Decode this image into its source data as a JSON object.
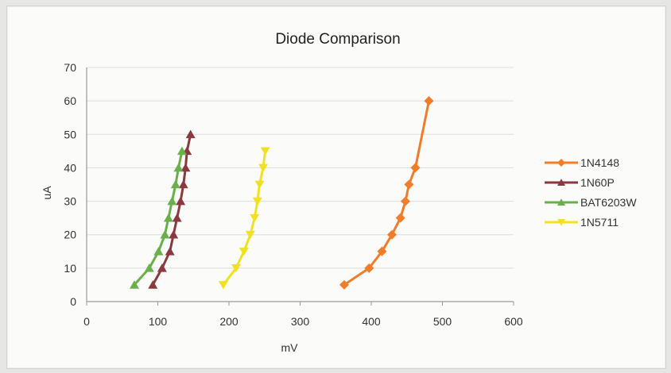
{
  "chart_data": {
    "type": "scatter",
    "title": "Diode Comparison",
    "xlabel": "mV",
    "ylabel": "uA",
    "xlim": [
      0,
      600
    ],
    "ylim": [
      0,
      70
    ],
    "x_ticks": [
      0,
      100,
      200,
      300,
      400,
      500,
      600
    ],
    "y_ticks": [
      0,
      10,
      20,
      30,
      40,
      50,
      60,
      70
    ],
    "grid": true,
    "legend_position": "right",
    "series": [
      {
        "name": "1N4148",
        "color": "#f07d2a",
        "marker": "diamond",
        "points": [
          [
            362,
            5
          ],
          [
            397,
            10
          ],
          [
            415,
            15
          ],
          [
            429,
            20
          ],
          [
            441,
            25
          ],
          [
            448,
            30
          ],
          [
            453,
            35
          ],
          [
            462,
            40
          ],
          [
            481,
            60
          ]
        ]
      },
      {
        "name": "1N60P",
        "color": "#8a3a3e",
        "marker": "triangle-up",
        "points": [
          [
            93,
            5
          ],
          [
            106,
            10
          ],
          [
            117,
            15
          ],
          [
            122,
            20
          ],
          [
            127,
            25
          ],
          [
            132,
            30
          ],
          [
            136,
            35
          ],
          [
            139,
            40
          ],
          [
            141,
            45
          ],
          [
            146,
            50
          ]
        ]
      },
      {
        "name": "BAT6203W",
        "color": "#6ab04a",
        "marker": "triangle-up",
        "points": [
          [
            67,
            5
          ],
          [
            88,
            10
          ],
          [
            101,
            15
          ],
          [
            110,
            20
          ],
          [
            115,
            25
          ],
          [
            120,
            30
          ],
          [
            125,
            35
          ],
          [
            129,
            40
          ],
          [
            134,
            45
          ]
        ]
      },
      {
        "name": "1N5711",
        "color": "#f1e221",
        "marker": "triangle-down",
        "points": [
          [
            192,
            5
          ],
          [
            210,
            10
          ],
          [
            221,
            15
          ],
          [
            230,
            20
          ],
          [
            236,
            25
          ],
          [
            240,
            30
          ],
          [
            243,
            35
          ],
          [
            248,
            40
          ],
          [
            251,
            45
          ]
        ]
      }
    ]
  }
}
